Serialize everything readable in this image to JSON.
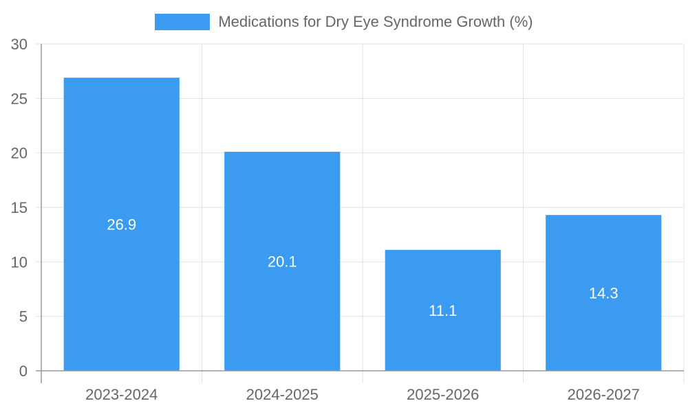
{
  "chart_data": {
    "type": "bar",
    "categories": [
      "2023-2024",
      "2024-2025",
      "2025-2026",
      "2026-2027"
    ],
    "series": [
      {
        "name": "Medications for Dry Eye Syndrome Growth (%)",
        "values": [
          26.9,
          20.1,
          11.1,
          14.3
        ]
      }
    ],
    "title": "",
    "xlabel": "",
    "ylabel": "",
    "ylim": [
      0,
      30
    ],
    "yticks": [
      0,
      5,
      10,
      15,
      20,
      25,
      30
    ],
    "data_labels": [
      "26.9",
      "20.1",
      "11.1",
      "14.3"
    ],
    "legend": "top-center",
    "grid": true,
    "colors": {
      "bar": "#3a9bf0",
      "grid": "#e2e2e2",
      "axis": "#999999",
      "text": "#666666",
      "label": "#ffffff"
    }
  }
}
